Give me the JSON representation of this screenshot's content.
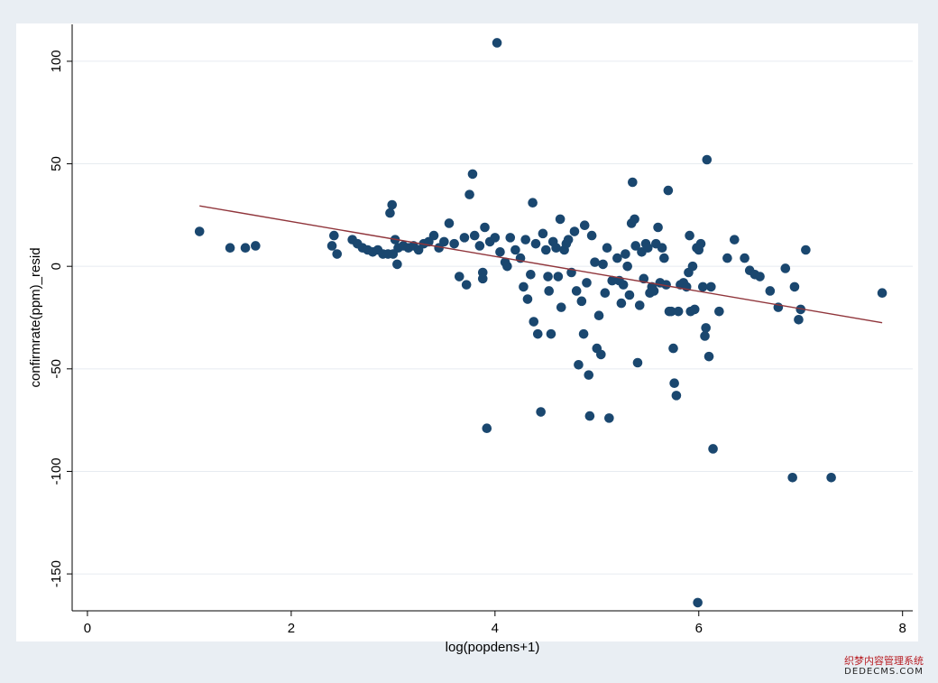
{
  "chart_data": {
    "type": "scatter",
    "title": "",
    "xlabel": "log(popdens+1)",
    "ylabel": "confirmrate(ppm)_resid",
    "xlim": [
      -0.15,
      8.1
    ],
    "ylim": [
      -168,
      118
    ],
    "xticks": [
      0,
      2,
      4,
      6,
      8
    ],
    "yticks": [
      100,
      50,
      0,
      -50,
      -100,
      -150
    ],
    "grid": "horizontal",
    "legend": "none",
    "marker_color": "#1a476f",
    "fit_color": "#90353b",
    "fit_line": {
      "x": [
        1.1,
        7.8
      ],
      "y": [
        29.5,
        -27.5
      ]
    },
    "points": [
      [
        1.1,
        17
      ],
      [
        1.4,
        9
      ],
      [
        1.55,
        9
      ],
      [
        1.65,
        10
      ],
      [
        2.4,
        10
      ],
      [
        2.42,
        15
      ],
      [
        2.45,
        6
      ],
      [
        2.6,
        13
      ],
      [
        2.65,
        11
      ],
      [
        2.7,
        9
      ],
      [
        2.75,
        8
      ],
      [
        2.8,
        7
      ],
      [
        2.85,
        8
      ],
      [
        2.9,
        6
      ],
      [
        2.95,
        6
      ],
      [
        2.97,
        26
      ],
      [
        2.99,
        30
      ],
      [
        3.0,
        6
      ],
      [
        3.02,
        13
      ],
      [
        3.04,
        1
      ],
      [
        3.05,
        9
      ],
      [
        3.1,
        10
      ],
      [
        3.15,
        9
      ],
      [
        3.2,
        10
      ],
      [
        3.25,
        8
      ],
      [
        3.3,
        11
      ],
      [
        3.35,
        12
      ],
      [
        3.4,
        15
      ],
      [
        3.45,
        9
      ],
      [
        3.5,
        12
      ],
      [
        3.55,
        21
      ],
      [
        3.6,
        11
      ],
      [
        3.65,
        -5
      ],
      [
        3.7,
        14
      ],
      [
        3.72,
        -9
      ],
      [
        3.75,
        35
      ],
      [
        3.78,
        45
      ],
      [
        3.8,
        15
      ],
      [
        3.85,
        10
      ],
      [
        3.88,
        -3
      ],
      [
        3.9,
        19
      ],
      [
        3.88,
        -6
      ],
      [
        3.92,
        -79
      ],
      [
        3.95,
        12
      ],
      [
        4.0,
        14
      ],
      [
        4.02,
        109
      ],
      [
        4.05,
        7
      ],
      [
        4.1,
        2
      ],
      [
        4.12,
        0
      ],
      [
        4.15,
        14
      ],
      [
        4.2,
        8
      ],
      [
        4.25,
        4
      ],
      [
        4.28,
        -10
      ],
      [
        4.3,
        13
      ],
      [
        4.32,
        -16
      ],
      [
        4.35,
        -4
      ],
      [
        4.37,
        31
      ],
      [
        4.38,
        -27
      ],
      [
        4.4,
        11
      ],
      [
        4.42,
        -33
      ],
      [
        4.45,
        -71
      ],
      [
        4.47,
        16
      ],
      [
        4.5,
        8
      ],
      [
        4.52,
        -5
      ],
      [
        4.53,
        -12
      ],
      [
        4.55,
        -33
      ],
      [
        4.57,
        12
      ],
      [
        4.6,
        9
      ],
      [
        4.62,
        -5
      ],
      [
        4.64,
        23
      ],
      [
        4.65,
        -20
      ],
      [
        4.68,
        8
      ],
      [
        4.7,
        11
      ],
      [
        4.72,
        13
      ],
      [
        4.75,
        -3
      ],
      [
        4.78,
        17
      ],
      [
        4.8,
        -12
      ],
      [
        4.82,
        -48
      ],
      [
        4.85,
        -17
      ],
      [
        4.87,
        -33
      ],
      [
        4.88,
        20
      ],
      [
        4.9,
        -8
      ],
      [
        4.92,
        -53
      ],
      [
        4.93,
        -73
      ],
      [
        4.95,
        15
      ],
      [
        4.98,
        2
      ],
      [
        5.0,
        -40
      ],
      [
        5.02,
        -24
      ],
      [
        5.04,
        -43
      ],
      [
        5.06,
        1
      ],
      [
        5.08,
        -13
      ],
      [
        5.1,
        9
      ],
      [
        5.12,
        -74
      ],
      [
        5.15,
        -7
      ],
      [
        5.2,
        4
      ],
      [
        5.22,
        -7
      ],
      [
        5.24,
        -18
      ],
      [
        5.26,
        -9
      ],
      [
        5.28,
        6
      ],
      [
        5.3,
        0
      ],
      [
        5.32,
        -14
      ],
      [
        5.34,
        21
      ],
      [
        5.35,
        41
      ],
      [
        5.37,
        23
      ],
      [
        5.38,
        10
      ],
      [
        5.4,
        -47
      ],
      [
        5.42,
        -19
      ],
      [
        5.44,
        7
      ],
      [
        5.46,
        -6
      ],
      [
        5.48,
        11
      ],
      [
        5.5,
        9
      ],
      [
        5.52,
        -13
      ],
      [
        5.54,
        -10
      ],
      [
        5.56,
        -12
      ],
      [
        5.58,
        11
      ],
      [
        5.6,
        19
      ],
      [
        5.62,
        -8
      ],
      [
        5.64,
        9
      ],
      [
        5.66,
        4
      ],
      [
        5.68,
        -9
      ],
      [
        5.7,
        37
      ],
      [
        5.71,
        -22
      ],
      [
        5.73,
        -22
      ],
      [
        5.75,
        -40
      ],
      [
        5.76,
        -57
      ],
      [
        5.78,
        -63
      ],
      [
        5.8,
        -22
      ],
      [
        5.82,
        -9
      ],
      [
        5.85,
        -8
      ],
      [
        5.88,
        -10
      ],
      [
        5.9,
        -3
      ],
      [
        5.91,
        15
      ],
      [
        5.92,
        -22
      ],
      [
        5.94,
        0
      ],
      [
        5.96,
        -21
      ],
      [
        5.98,
        9
      ],
      [
        5.99,
        -164
      ],
      [
        6.0,
        8
      ],
      [
        6.02,
        11
      ],
      [
        6.04,
        -10
      ],
      [
        6.06,
        -34
      ],
      [
        6.07,
        -30
      ],
      [
        6.08,
        52
      ],
      [
        6.1,
        -44
      ],
      [
        6.12,
        -10
      ],
      [
        6.14,
        -89
      ],
      [
        6.2,
        -22
      ],
      [
        6.28,
        4
      ],
      [
        6.35,
        13
      ],
      [
        6.45,
        4
      ],
      [
        6.5,
        -2
      ],
      [
        6.55,
        -4
      ],
      [
        6.6,
        -5
      ],
      [
        6.7,
        -12
      ],
      [
        6.78,
        -20
      ],
      [
        6.85,
        -1
      ],
      [
        6.92,
        -103
      ],
      [
        6.94,
        -10
      ],
      [
        6.98,
        -26
      ],
      [
        7.0,
        -21
      ],
      [
        7.05,
        8
      ],
      [
        7.3,
        -103
      ],
      [
        7.8,
        -13
      ]
    ]
  },
  "watermark": {
    "line1": "织梦内容管理系统",
    "line2": "DEDECMS.COM"
  }
}
